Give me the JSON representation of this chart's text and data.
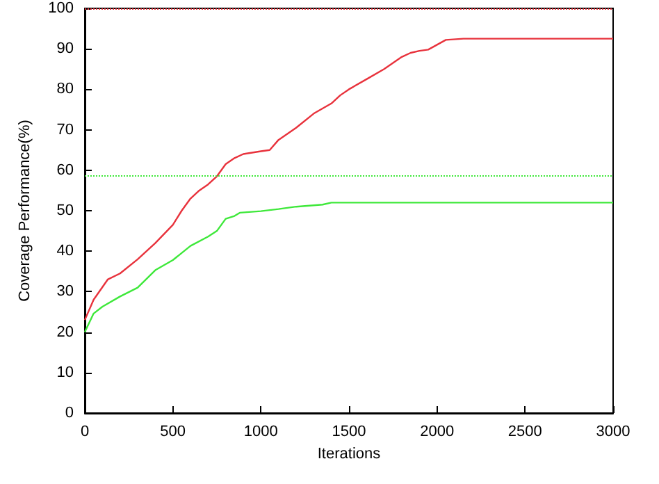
{
  "chart_data": {
    "type": "line",
    "xlabel": "Iterations",
    "ylabel": "Coverage Performance(%)",
    "xlim": [
      0,
      3000
    ],
    "xticks": [
      0,
      500,
      1000,
      1500,
      2000,
      2500,
      3000
    ],
    "ylim": [
      0,
      100
    ],
    "yticks": [
      0,
      10,
      20,
      30,
      40,
      50,
      60,
      70,
      80,
      90,
      100
    ],
    "grid": false,
    "line_style": "solid",
    "marker": "none",
    "series": [
      {
        "color": "#e8323c",
        "x": [
          0,
          50,
          130,
          200,
          300,
          400,
          500,
          550,
          600,
          650,
          700,
          750,
          800,
          850,
          900,
          1000,
          1050,
          1100,
          1200,
          1300,
          1400,
          1450,
          1500,
          1600,
          1700,
          1800,
          1850,
          1900,
          1950,
          2000,
          2050,
          2150,
          3000
        ],
        "values": [
          23,
          28,
          33,
          34.5,
          38,
          42,
          46.5,
          50,
          53,
          55,
          56.5,
          58.5,
          61.5,
          63,
          64,
          64.7,
          65,
          67.5,
          70.5,
          74,
          76.5,
          78.5,
          80,
          82.5,
          85,
          88,
          89,
          89.5,
          89.8,
          91,
          92.2,
          92.5,
          92.5
        ]
      },
      {
        "color": "#3ee83a",
        "x": [
          0,
          50,
          100,
          200,
          300,
          400,
          500,
          600,
          700,
          750,
          800,
          850,
          880,
          1000,
          1100,
          1200,
          1350,
          1400,
          3000
        ],
        "values": [
          20,
          24.6,
          26.3,
          28.8,
          31,
          35.3,
          37.8,
          41.3,
          43.6,
          45,
          48,
          48.7,
          49.5,
          49.9,
          50.4,
          51,
          51.5,
          52,
          52
        ]
      }
    ],
    "ref_lines": [
      {
        "axis": "y",
        "value": 100,
        "color": "#e8323c",
        "line_style": "dotted"
      },
      {
        "axis": "y",
        "value": 58.7,
        "color": "#3ee83a",
        "line_style": "dotted"
      }
    ]
  }
}
